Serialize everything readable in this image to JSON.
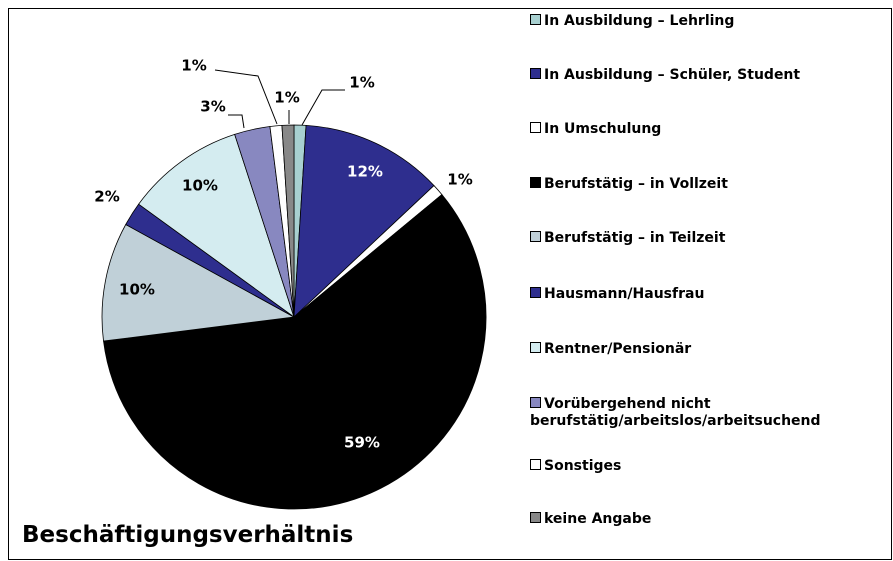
{
  "chart_data": {
    "type": "pie",
    "title": "Beschäftigungsverhältnis",
    "categories": [
      "In Ausbildung – Lehrling",
      "In Ausbildung – Schüler, Student",
      "In Umschulung",
      "Berufstätig – in Vollzeit",
      "Berufstätig – in Teilzeit",
      "Hausmann/Hausfrau",
      "Rentner/Pensionär",
      "Vorübergehend nicht\nberufstätig/arbeitslos/arbeitsuchend",
      "Sonstiges",
      "keine Angabe"
    ],
    "values": [
      1,
      12,
      1,
      59,
      10,
      2,
      10,
      3,
      1,
      1
    ],
    "value_labels": [
      "1%",
      "12%",
      "1%",
      "59%",
      "10%",
      "2%",
      "10%",
      "3%",
      "1%",
      "1%"
    ],
    "colors": [
      "#a8d0d0",
      "#2e2e8e",
      "#ffffff",
      "#000000",
      "#c0d0d8",
      "#2e2e8e",
      "#d4ecf0",
      "#8888c0",
      "#ffffff",
      "#888888"
    ],
    "legend": "right"
  }
}
